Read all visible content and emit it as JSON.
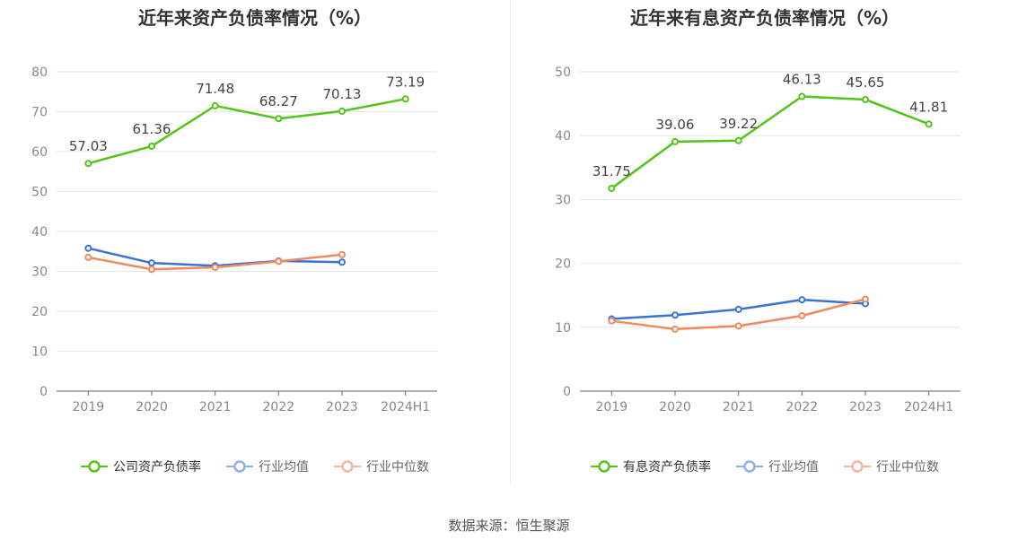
{
  "source": {
    "label": "数据来源",
    "sep": "：",
    "name": "恒生聚源"
  },
  "colors": {
    "company": "#52c41a",
    "industry_avg": "#3a72d8",
    "industry_median": "#f08a5d",
    "legend_avg": "#8fb0ea",
    "legend_median": "#f5b6a0"
  },
  "chart_data": [
    {
      "type": "line",
      "title": "近年来资产负债率情况（%）",
      "categories": [
        "2019",
        "2020",
        "2021",
        "2022",
        "2023",
        "2024H1"
      ],
      "ylim": [
        0,
        80
      ],
      "yticks": [
        0,
        10,
        20,
        30,
        40,
        50,
        60,
        70,
        80
      ],
      "grid": true,
      "legend_position": "bottom",
      "series": [
        {
          "name": "公司资产负债率",
          "values": [
            57.03,
            61.36,
            71.48,
            68.27,
            70.13,
            73.19
          ],
          "labeled": true
        },
        {
          "name": "行业均值",
          "values": [
            35.8,
            32.1,
            31.4,
            32.6,
            32.3,
            null
          ],
          "labeled": false
        },
        {
          "name": "行业中位数",
          "values": [
            33.5,
            30.5,
            31.0,
            32.5,
            34.2,
            null
          ],
          "labeled": false
        }
      ]
    },
    {
      "type": "line",
      "title": "近年来有息资产负债率情况（%）",
      "categories": [
        "2019",
        "2020",
        "2021",
        "2022",
        "2023",
        "2024H1"
      ],
      "ylim": [
        0,
        50
      ],
      "yticks": [
        0,
        10,
        20,
        30,
        40,
        50
      ],
      "grid": true,
      "legend_position": "bottom",
      "series": [
        {
          "name": "有息资产负债率",
          "values": [
            31.75,
            39.06,
            39.22,
            46.13,
            45.65,
            41.81
          ],
          "labeled": true
        },
        {
          "name": "行业均值",
          "values": [
            11.3,
            11.9,
            12.8,
            14.3,
            13.7,
            null
          ],
          "labeled": false
        },
        {
          "name": "行业中位数",
          "values": [
            11.0,
            9.7,
            10.2,
            11.8,
            14.4,
            null
          ],
          "labeled": false
        }
      ]
    }
  ]
}
